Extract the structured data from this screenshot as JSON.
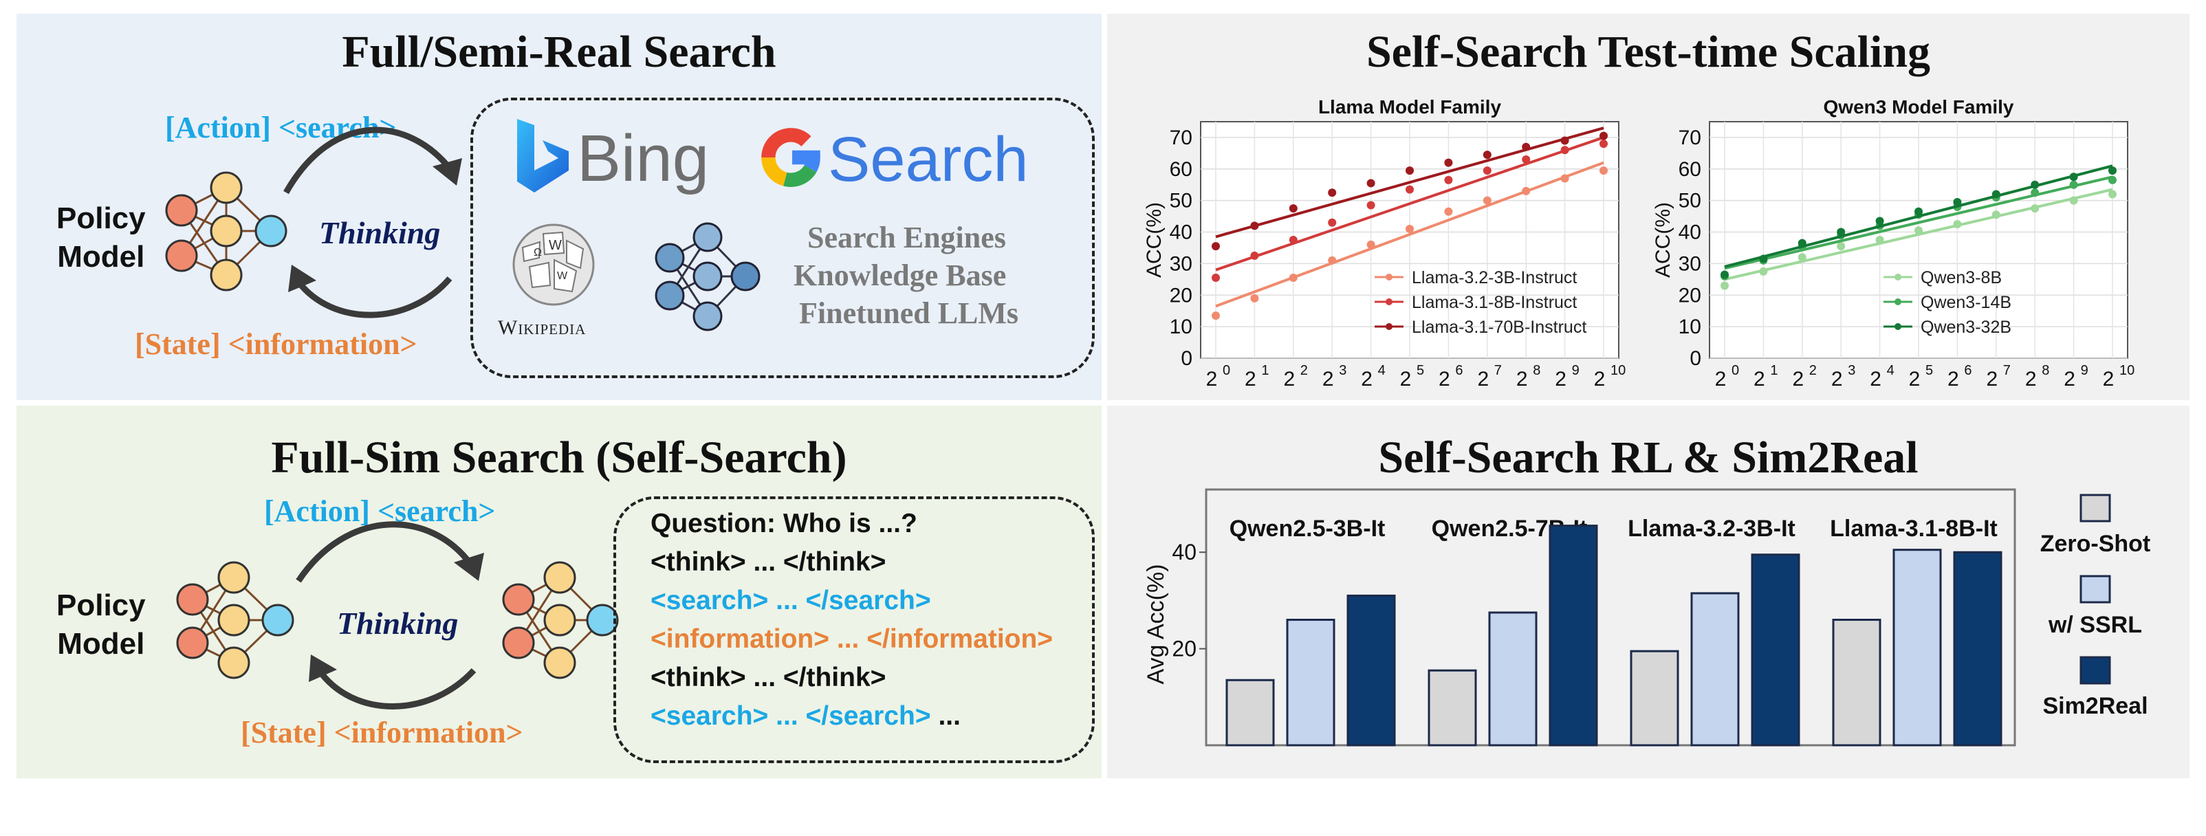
{
  "colors": {
    "action_blue": "#1aa7e6",
    "state_orange": "#e8823a",
    "thinking_navy": "#0f1e5c",
    "knowledge_gray": "#7a7a7a",
    "zero_shot": "#d7d7d7",
    "ssrl": "#c6d5ee",
    "sim2real": "#0c3a6e"
  },
  "top_left": {
    "title": "Full/Semi-Real Search",
    "action": "[Action] <search>",
    "state": "[State] <information>",
    "policy_model": "Policy\nModel",
    "thinking": "Thinking",
    "bing": "Bing",
    "google_search": "Search",
    "wikipedia": "Wikipedia",
    "sources": [
      "Search Engines",
      "Knowledge Base",
      "Finetuned LLMs"
    ],
    "icons": [
      "bing-logo-icon",
      "google-logo-icon",
      "wikipedia-globe-icon",
      "neural-network-icon"
    ]
  },
  "bottom_left": {
    "title": "Full-Sim Search (Self-Search)",
    "action": "[Action] <search>",
    "state": "[State] <information>",
    "policy_model": "Policy\nModel",
    "thinking": "Thinking",
    "transcript": [
      {
        "text": "Question: Who is ...?",
        "color": "#111111"
      },
      {
        "text": "<think> ... </think>",
        "color": "#111111"
      },
      {
        "text": "<search> ... </search>",
        "color": "#1aa7e6"
      },
      {
        "text": "<information> ... </information>",
        "color": "#e8823a"
      },
      {
        "text": "<think> ... </think>",
        "color": "#111111"
      },
      {
        "text": "<search> ... </search>",
        "color": "#1aa7e6",
        "suffix": " ..."
      }
    ]
  },
  "top_right": {
    "title": "Self-Search Test-time Scaling"
  },
  "bottom_right": {
    "title": "Self-Search RL & Sim2Real"
  },
  "chart_data": [
    {
      "type": "line",
      "title": "Llama Model Family",
      "ylabel": "ACC(%)",
      "x_ticks_base": "2",
      "x_ticks_exp": [
        "0",
        "1",
        "2",
        "3",
        "4",
        "5",
        "6",
        "7",
        "8",
        "9",
        "10"
      ],
      "x": [
        1,
        2,
        4,
        8,
        16,
        32,
        64,
        128,
        256,
        512,
        1024
      ],
      "ylim": [
        0,
        75
      ],
      "yticks": [
        0,
        10,
        20,
        30,
        40,
        50,
        60,
        70
      ],
      "legend_position": "lower-right",
      "grid": true,
      "series": [
        {
          "name": "Llama-3.2-3B-Instruct",
          "color": "#f08a6e",
          "values": [
            13.5,
            19,
            25.5,
            31,
            36,
            41,
            46.5,
            50,
            53,
            57,
            59.5
          ],
          "fit": [
            16.5,
            62
          ]
        },
        {
          "name": "Llama-3.1-8B-Instruct",
          "color": "#d33b3b",
          "values": [
            25.5,
            32.5,
            37.5,
            43,
            48.5,
            53.5,
            56.5,
            59.5,
            63,
            66,
            68
          ],
          "fit": [
            28,
            70
          ]
        },
        {
          "name": "Llama-3.1-70B-Instruct",
          "color": "#9e1a1e",
          "values": [
            35.5,
            42,
            47.5,
            52.5,
            55.5,
            59.5,
            62,
            64.5,
            67,
            69,
            70.5
          ],
          "fit": [
            38.5,
            73
          ]
        }
      ]
    },
    {
      "type": "line",
      "title": "Qwen3 Model Family",
      "ylabel": "ACC(%)",
      "x_ticks_base": "2",
      "x_ticks_exp": [
        "0",
        "1",
        "2",
        "3",
        "4",
        "5",
        "6",
        "7",
        "8",
        "9",
        "10"
      ],
      "x": [
        1,
        2,
        4,
        8,
        16,
        32,
        64,
        128,
        256,
        512,
        1024
      ],
      "ylim": [
        0,
        75
      ],
      "yticks": [
        0,
        10,
        20,
        30,
        40,
        50,
        60,
        70
      ],
      "legend_position": "lower-right",
      "grid": true,
      "series": [
        {
          "name": "Qwen3-8B",
          "color": "#9ed89a",
          "values": [
            23,
            27.5,
            32,
            35.5,
            37.5,
            40.5,
            42.5,
            45.5,
            47.5,
            50,
            52
          ],
          "fit": [
            25,
            53.5
          ]
        },
        {
          "name": "Qwen3-14B",
          "color": "#43ab5a",
          "values": [
            26,
            31,
            35.5,
            39,
            42,
            45.5,
            48,
            51,
            52.5,
            55,
            56.5
          ],
          "fit": [
            28.5,
            57.5
          ]
        },
        {
          "name": "Qwen3-32B",
          "color": "#137a36",
          "values": [
            26.5,
            31.5,
            36.5,
            40,
            43.5,
            46.5,
            49.5,
            52,
            55,
            57.5,
            59.5
          ],
          "fit": [
            29,
            61
          ]
        }
      ]
    },
    {
      "type": "bar",
      "ylabel": "Avg Acc(%)",
      "yticks": [
        20,
        40
      ],
      "ylim": [
        0,
        53
      ],
      "categories": [
        "Qwen2.5-3B-It",
        "Qwen2.5-7B-It",
        "Llama-3.2-3B-It",
        "Llama-3.1-8B-It"
      ],
      "legend_position": "right",
      "series": [
        {
          "name": "Zero-Shot",
          "color": "#d7d7d7",
          "values": [
            13.5,
            15.5,
            19.5,
            26
          ]
        },
        {
          "name": "w/ SSRL",
          "color": "#c6d5ee",
          "values": [
            26,
            27.5,
            31.5,
            40.5
          ]
        },
        {
          "name": "Sim2Real",
          "color": "#0c3a6e",
          "values": [
            31,
            45.5,
            39.5,
            40
          ]
        }
      ]
    }
  ]
}
